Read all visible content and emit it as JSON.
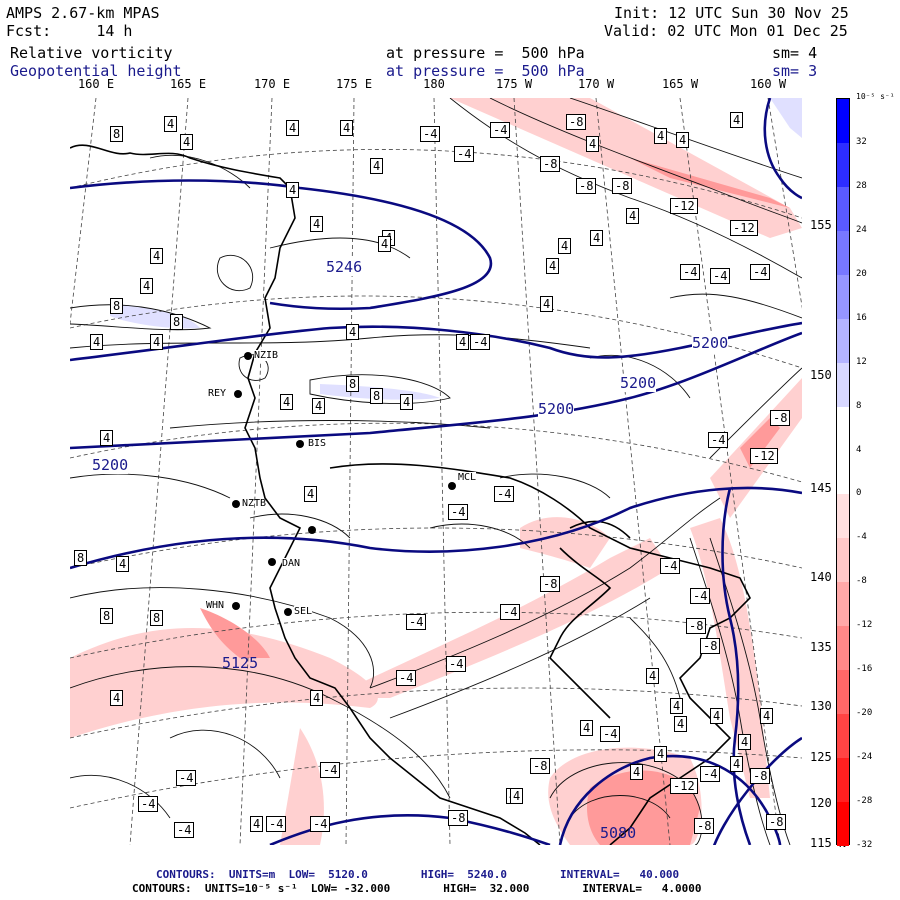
{
  "header": {
    "model": "AMPS 2.67-km MPAS",
    "fcst_label": "Fcst:",
    "fcst_value": "14 h",
    "field1": "Relative vorticity",
    "field2": "Geopotential height",
    "init": "Init: 12 UTC Sun 30 Nov 25",
    "valid": "Valid: 02 UTC Mon 01 Dec 25",
    "pressure1": "at pressure =  500 hPa",
    "pressure2": "at pressure =  500 hPa",
    "sm1": "sm= 4",
    "sm2": "sm= 3"
  },
  "lon_labels": [
    "160 E",
    "165 E",
    "170 E",
    "175 E",
    "180",
    "175 W",
    "170 W",
    "165 W",
    "160 W"
  ],
  "lat_labels": [
    "155 N",
    "150 N",
    "145 N",
    "140 N",
    "135 N",
    "130 N",
    "125 N",
    "120 N",
    "115 N"
  ],
  "stations": [
    "NZIB",
    "REY",
    "BIS",
    "MCL",
    "DAN",
    "WHN",
    "SEL",
    "NZTB"
  ],
  "height_labels": [
    "5246",
    "5200",
    "5200",
    "5200",
    "5200",
    "5125",
    "5080"
  ],
  "colorbar": {
    "units": "10⁻⁵ s⁻¹",
    "ticks": [
      "32",
      "28",
      "24",
      "20",
      "16",
      "12",
      "8",
      "4",
      "0",
      "-4",
      "-8",
      "-12",
      "-16",
      "-20",
      "-24",
      "-28",
      "-32"
    ],
    "colors": [
      "#0000ff",
      "#2d2dff",
      "#5a5aff",
      "#7878ff",
      "#9696ff",
      "#b4b4ff",
      "#d8d8ff",
      "#ffffff",
      "#ffffff",
      "#ffe0e0",
      "#ffc8c8",
      "#ffa8a8",
      "#ff8888",
      "#ff6868",
      "#ff4444",
      "#ff2020",
      "#ff0000"
    ]
  },
  "footer": {
    "line1": "CONTOURS:  UNITS=m  LOW=  5120.0        HIGH=  5240.0        INTERVAL=   40.000",
    "line2": "CONTOURS:  UNITS=10⁻⁵ s⁻¹  LOW= -32.000        HIGH=  32.000        INTERVAL=   4.0000"
  },
  "vort_labels": [
    "4",
    "-4",
    "-8",
    "8",
    "-12"
  ]
}
